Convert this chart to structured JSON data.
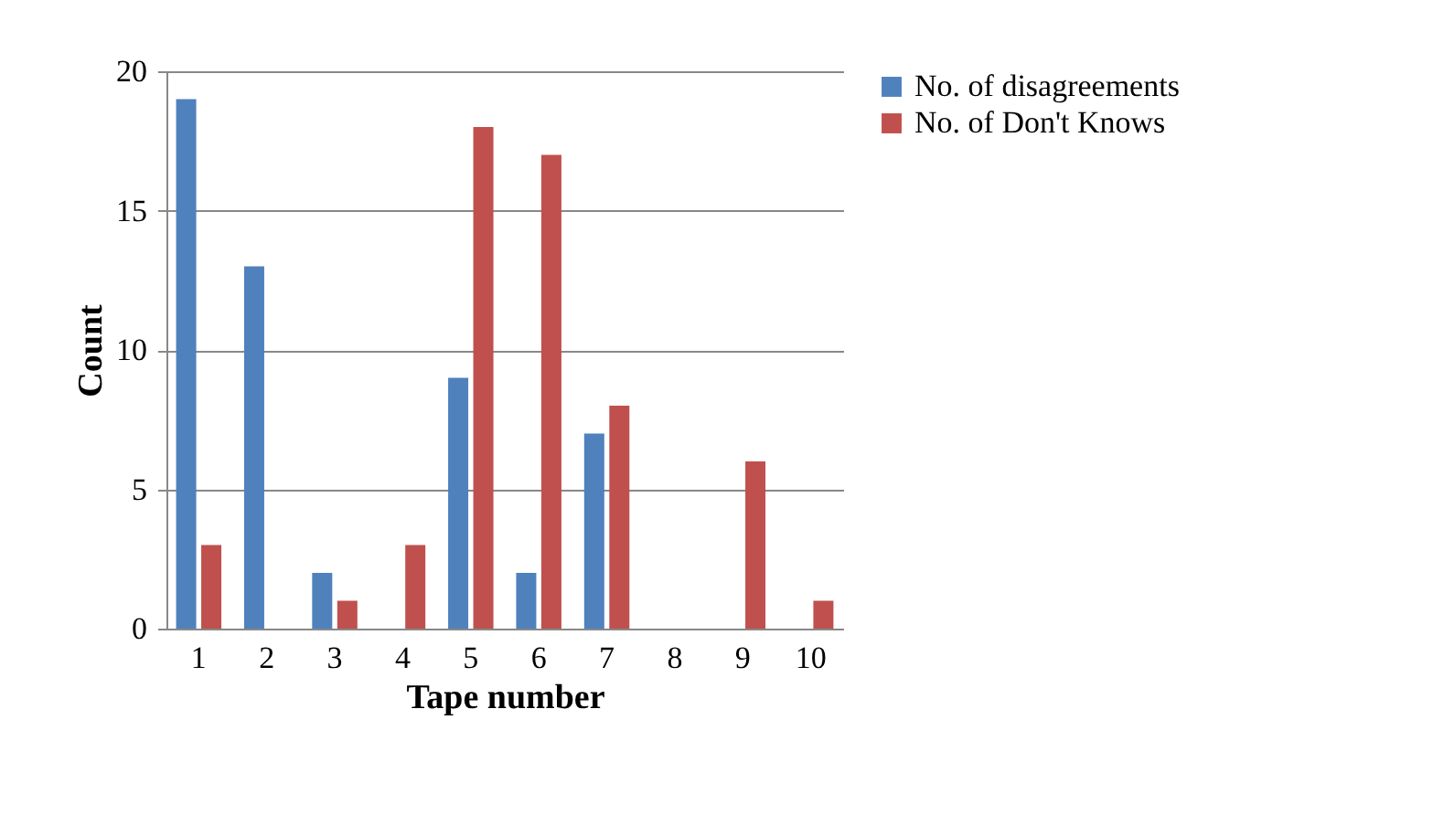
{
  "chart_data": {
    "type": "bar",
    "xlabel": "Tape number",
    "ylabel": "Count",
    "categories": [
      "1",
      "2",
      "3",
      "4",
      "5",
      "6",
      "7",
      "8",
      "9",
      "10"
    ],
    "series": [
      {
        "name": "No. of disagreements",
        "color": "#4f81bd",
        "values": [
          19,
          13,
          2,
          0,
          9,
          2,
          7,
          0,
          0,
          0
        ]
      },
      {
        "name": "No. of Don't Knows",
        "color": "#c0504d",
        "values": [
          3,
          0,
          1,
          3,
          18,
          17,
          8,
          0,
          6,
          1
        ]
      }
    ],
    "ylim": [
      0,
      20
    ],
    "yticks": [
      0,
      5,
      10,
      15,
      20
    ],
    "grid": "y",
    "legend": "right"
  }
}
